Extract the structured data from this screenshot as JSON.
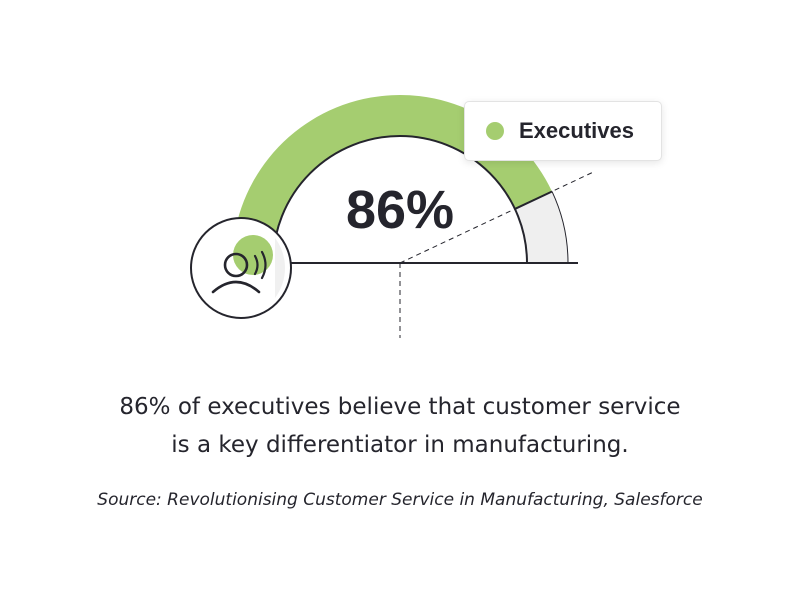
{
  "chart_data": {
    "type": "gauge",
    "value": 86,
    "max": 100,
    "value_label": "86%",
    "series": [
      {
        "name": "Executives",
        "value": 86
      }
    ]
  },
  "colors": {
    "accent": "#a5cd70",
    "track": "#efefef",
    "ink": "#25252d"
  },
  "icon": "person-speaking-icon",
  "caption": {
    "line1": "86% of executives believe that customer service",
    "line2": "is a key differentiator in manufacturing."
  },
  "source": "Source: Revolutionising Customer Service in Manufacturing, Salesforce"
}
